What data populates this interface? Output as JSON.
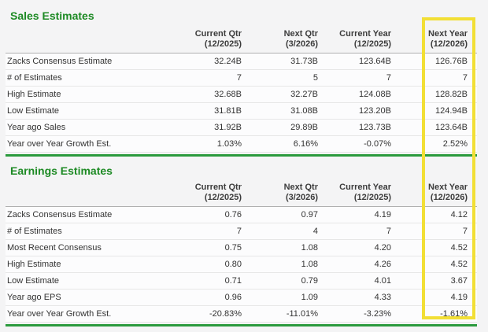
{
  "colors": {
    "section_title_green": "#1d8a24",
    "divider_green": "#2a9a3d",
    "highlight_yellow": "#f2df35",
    "text": "#333333",
    "page_background": "#f4f4f5",
    "row_border": "#e7e7e7",
    "header_border": "#b0b0b0"
  },
  "highlight": {
    "type": "yellow-box-annotation",
    "target_column": "Next Year (12/2026)",
    "spans": "both tables"
  },
  "chart_data": [
    {
      "type": "table",
      "title": "Sales Estimates",
      "column_headers": [
        "Current Qtr\n(12/2025)",
        "Next Qtr\n(3/2026)",
        "Current Year\n(12/2025)",
        "Next Year\n(12/2026)"
      ],
      "row_labels": [
        "Zacks Consensus Estimate",
        "# of Estimates",
        "High Estimate",
        "Low Estimate",
        "Year ago Sales",
        "Year over Year Growth Est."
      ],
      "rows": [
        [
          "32.24B",
          "31.73B",
          "123.64B",
          "126.76B"
        ],
        [
          "7",
          "5",
          "7",
          "7"
        ],
        [
          "32.68B",
          "32.27B",
          "124.08B",
          "128.82B"
        ],
        [
          "31.81B",
          "31.08B",
          "123.20B",
          "124.94B"
        ],
        [
          "31.92B",
          "29.89B",
          "123.73B",
          "123.64B"
        ],
        [
          "1.03%",
          "6.16%",
          "-0.07%",
          "2.52%"
        ]
      ]
    },
    {
      "type": "table",
      "title": "Earnings Estimates",
      "column_headers": [
        "Current Qtr\n(12/2025)",
        "Next Qtr\n(3/2026)",
        "Current Year\n(12/2025)",
        "Next Year\n(12/2026)"
      ],
      "row_labels": [
        "Zacks Consensus Estimate",
        "# of Estimates",
        "Most Recent Consensus",
        "High Estimate",
        "Low Estimate",
        "Year ago EPS",
        "Year over Year Growth Est."
      ],
      "rows": [
        [
          "0.76",
          "0.97",
          "4.19",
          "4.12"
        ],
        [
          "7",
          "4",
          "7",
          "7"
        ],
        [
          "0.75",
          "1.08",
          "4.20",
          "4.52"
        ],
        [
          "0.80",
          "1.08",
          "4.26",
          "4.52"
        ],
        [
          "0.71",
          "0.79",
          "4.01",
          "3.67"
        ],
        [
          "0.96",
          "1.09",
          "4.33",
          "4.19"
        ],
        [
          "-20.83%",
          "-11.01%",
          "-3.23%",
          "-1.61%"
        ]
      ]
    }
  ]
}
